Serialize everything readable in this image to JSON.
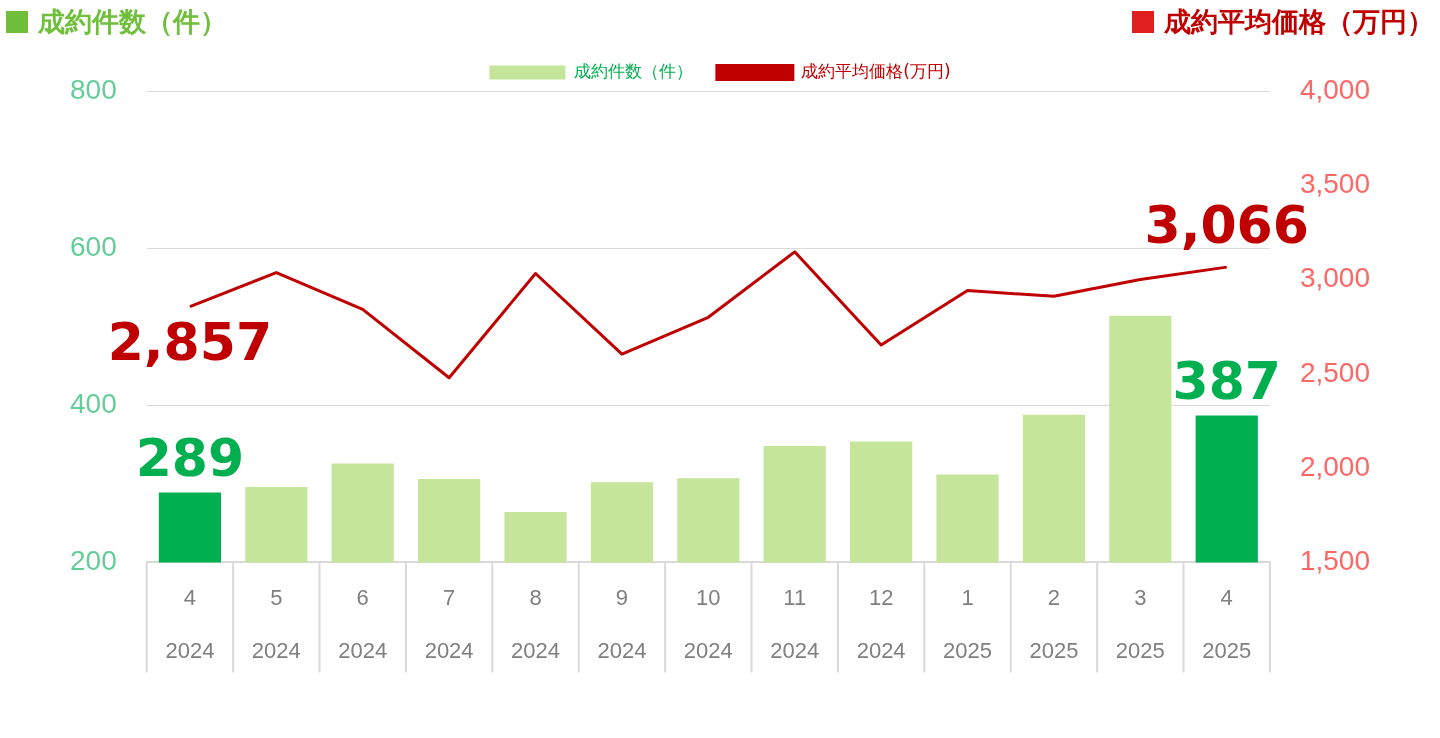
{
  "chart_data": {
    "type": "bar",
    "ylabel": "成約件数（件）",
    "y2label": "成約平均価格（万円）",
    "categories": [
      "4\n2024",
      "5\n2024",
      "6\n2024",
      "7\n2024",
      "8\n2024",
      "9\n2024",
      "10\n2024",
      "11\n2024",
      "12\n2024",
      "1\n2025",
      "2\n2025",
      "3\n2025",
      "4\n2025"
    ],
    "series": [
      {
        "name": "成約件数（件）",
        "color": "#c4e59a",
        "colors": [
          "#00b050",
          "#c4e59a",
          "#c4e59a",
          "#c4e59a",
          "#c4e59a",
          "#c4e59a",
          "#c4e59a",
          "#c4e59a",
          "#c4e59a",
          "#c4e59a",
          "#c4e59a",
          "#c4e59a",
          "#00b050"
        ],
        "values": [
          289,
          296,
          326,
          306,
          264,
          302,
          307,
          348,
          354,
          312,
          388,
          514,
          387
        ],
        "value_labels": [
          "289",
          null,
          null,
          null,
          null,
          null,
          null,
          null,
          null,
          null,
          null,
          null,
          "387"
        ]
      },
      {
        "name": "成約平均価格(万円)",
        "type": "line",
        "axis": "y2",
        "color": "#c00000",
        "marker": "none",
        "values": [
          2857,
          3037,
          2842,
          2479,
          3032,
          2605,
          2800,
          3147,
          2653,
          2942,
          2911,
          3000,
          3066
        ],
        "value_labels": [
          "2,857",
          null,
          null,
          null,
          null,
          null,
          null,
          null,
          null,
          null,
          null,
          null,
          "3,066"
        ]
      }
    ],
    "ylim": [
      200,
      800
    ],
    "yticks": [
      200,
      400,
      600,
      800
    ],
    "y2lim": [
      1500,
      4000
    ],
    "y2ticks": [
      {
        "value": 1500,
        "label": "1,500"
      },
      {
        "value": 2000,
        "label": "2,000"
      },
      {
        "value": 2500,
        "label": "2,500"
      },
      {
        "value": 3000,
        "label": "3,000"
      },
      {
        "value": 3500,
        "label": "3,500"
      },
      {
        "value": 4000,
        "label": "4,000"
      }
    ],
    "grid": "y",
    "legend": "top"
  }
}
